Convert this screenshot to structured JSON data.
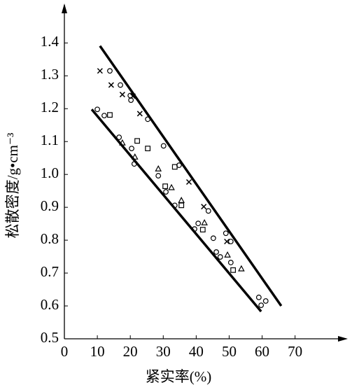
{
  "chart_data": {
    "type": "scatter",
    "xlabel": "紧实率(%)",
    "ylabel": "松散密度/g•cm⁻³",
    "xlim": [
      0,
      86
    ],
    "ylim": [
      0.5,
      1.52
    ],
    "xticks": [
      0,
      10,
      20,
      30,
      40,
      50,
      60,
      70
    ],
    "yticks": [
      0.5,
      0.6,
      0.7,
      0.8,
      0.9,
      {
        "value": 1,
        "label": "1.0"
      },
      1.1,
      1.2,
      1.3,
      1.4
    ],
    "color": "#000000",
    "series": [
      {
        "marker": "circle",
        "x": [
          10,
          12.1,
          13.8,
          17,
          16.6,
          20.4,
          20,
          20.2,
          21.2,
          25.3,
          30.1,
          28.5,
          30.8,
          34.8,
          33.5,
          39.5,
          40.6,
          43.7,
          45.2,
          46.1,
          47.3,
          49,
          50.5,
          50.5,
          59,
          59.7,
          61.1
        ],
        "values": [
          1.198,
          1.179,
          1.315,
          1.272,
          1.113,
          1.079,
          1.24,
          1.226,
          1.032,
          1.168,
          1.087,
          0.996,
          0.947,
          1.028,
          0.906,
          0.834,
          0.851,
          0.889,
          0.806,
          0.764,
          0.749,
          0.821,
          0.796,
          0.732,
          0.626,
          0.602,
          0.615
        ]
      },
      {
        "marker": "cross",
        "x": [
          10.8,
          14.2,
          17.6,
          20.8,
          22.9,
          37.8,
          42.3,
          49.3
        ],
        "values": [
          1.315,
          1.272,
          1.243,
          1.238,
          1.185,
          0.977,
          0.902,
          0.796
        ]
      },
      {
        "marker": "square",
        "x": [
          13.8,
          22.1,
          25.3,
          30.6,
          33.5,
          35.5,
          42,
          51.2
        ],
        "values": [
          1.181,
          1.102,
          1.079,
          0.964,
          1.023,
          0.906,
          0.832,
          0.709
        ]
      },
      {
        "marker": "triangle",
        "x": [
          17.6,
          21.4,
          28.5,
          32.5,
          35.5,
          42.5,
          49.5,
          53.7
        ],
        "values": [
          1.096,
          1.053,
          1.017,
          0.96,
          0.921,
          0.853,
          0.755,
          0.713
        ]
      }
    ],
    "lines": [
      {
        "x": [
          10.8,
          65.8
        ],
        "values": [
          1.391,
          0.6
        ]
      },
      {
        "x": [
          8.3,
          59.7
        ],
        "values": [
          1.198,
          0.583
        ]
      }
    ]
  }
}
